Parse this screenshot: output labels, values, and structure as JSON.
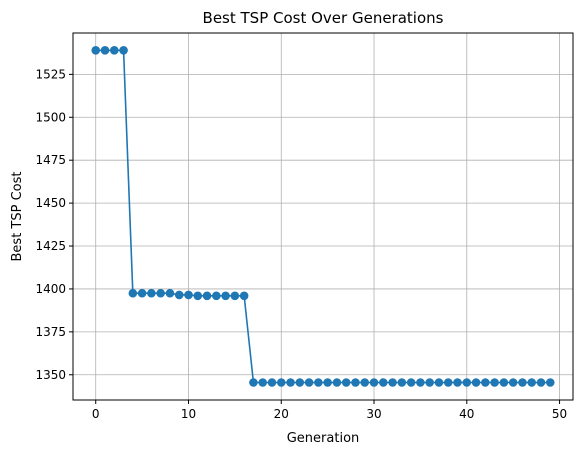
{
  "chart_data": {
    "type": "line",
    "title": "Best TSP Cost Over Generations",
    "xlabel": "Generation",
    "ylabel": "Best TSP Cost",
    "xlim": [
      -2.45,
      51.45
    ],
    "ylim": [
      1335.3,
      1549.1
    ],
    "xticks": [
      0,
      10,
      20,
      30,
      40,
      50
    ],
    "yticks": [
      1350,
      1375,
      1400,
      1425,
      1450,
      1475,
      1500,
      1525
    ],
    "grid": true,
    "legend": "none",
    "series": [
      {
        "color": "#1f77b4",
        "marker": "circle",
        "x": [
          0,
          1,
          2,
          3,
          4,
          5,
          6,
          7,
          8,
          9,
          10,
          11,
          12,
          13,
          14,
          15,
          16,
          17,
          18,
          19,
          20,
          21,
          22,
          23,
          24,
          25,
          26,
          27,
          28,
          29,
          30,
          31,
          32,
          33,
          34,
          35,
          36,
          37,
          38,
          39,
          40,
          41,
          42,
          43,
          44,
          45,
          46,
          47,
          48,
          49
        ],
        "y": [
          1539,
          1539,
          1539,
          1539,
          1397.5,
          1397.5,
          1397.5,
          1397.5,
          1397.5,
          1396.5,
          1396.5,
          1396,
          1396,
          1396,
          1396,
          1396,
          1396,
          1345.5,
          1345.5,
          1345.5,
          1345.5,
          1345.5,
          1345.5,
          1345.5,
          1345.5,
          1345.5,
          1345.5,
          1345.5,
          1345.5,
          1345.5,
          1345.5,
          1345.5,
          1345.5,
          1345.5,
          1345.5,
          1345.5,
          1345.5,
          1345.5,
          1345.5,
          1345.5,
          1345.5,
          1345.5,
          1345.5,
          1345.5,
          1345.5,
          1345.5,
          1345.5,
          1345.5,
          1345.5,
          1345.5
        ]
      }
    ]
  }
}
